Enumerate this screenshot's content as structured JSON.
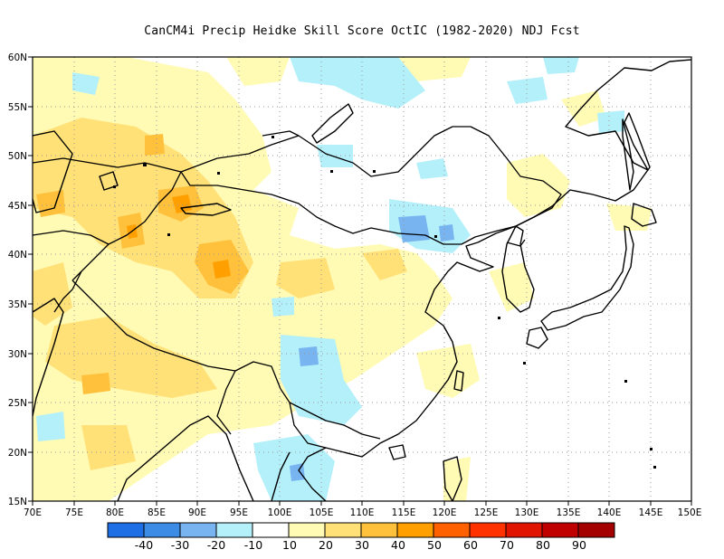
{
  "title": "CanCM4i Precip Heidke Skill Score OctIC (1982-2020) NDJ Fcst",
  "map": {
    "lon_range": [
      70,
      150
    ],
    "lat_range": [
      15,
      60
    ],
    "lon_ticks": [
      "70E",
      "75E",
      "80E",
      "85E",
      "90E",
      "95E",
      "100E",
      "105E",
      "110E",
      "115E",
      "120E",
      "125E",
      "130E",
      "135E",
      "140E",
      "145E",
      "150E"
    ],
    "lat_ticks": [
      "15N",
      "20N",
      "25N",
      "30N",
      "35N",
      "40N",
      "45N",
      "50N",
      "55N",
      "60N"
    ]
  },
  "colorbar": {
    "colors": [
      "#1e6fe6",
      "#3c8ce6",
      "#78b4f0",
      "#b4f0fa",
      "#ffffff",
      "#fffab4",
      "#ffe178",
      "#ffc03c",
      "#ffa000",
      "#ff6000",
      "#ff3200",
      "#e11400",
      "#c00000",
      "#a50000"
    ],
    "labels": [
      "-40",
      "-30",
      "-20",
      "-10",
      "10",
      "20",
      "30",
      "40",
      "50",
      "60",
      "70",
      "80",
      "90"
    ]
  }
}
